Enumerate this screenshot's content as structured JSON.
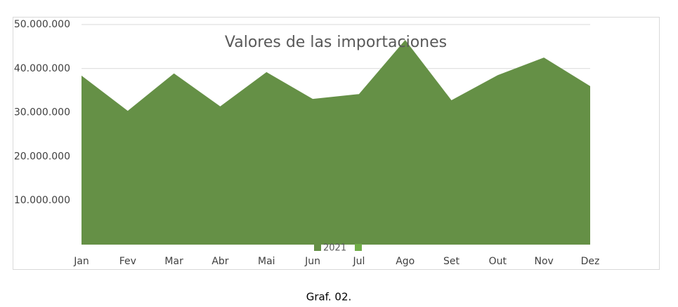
{
  "chart_data": {
    "type": "area",
    "title": "Valores de las importaciones",
    "categories": [
      "Jan",
      "Fev",
      "Mar",
      "Abr",
      "Mai",
      "Jun",
      "Jul",
      "Ago",
      "Set",
      "Out",
      "Nov",
      "Dez"
    ],
    "series": [
      {
        "name": "2021",
        "color": "#659046",
        "values": [
          38400000,
          30400000,
          38900000,
          31400000,
          39200000,
          33100000,
          34200000,
          46500000,
          32800000,
          38500000,
          42500000,
          36000000
        ]
      }
    ],
    "ylim": [
      0,
      50000000
    ],
    "yticks": [
      {
        "value": 10000000,
        "label": "10.000.000"
      },
      {
        "value": 20000000,
        "label": "20.000.000"
      },
      {
        "value": 30000000,
        "label": "30.000.000"
      },
      {
        "value": 40000000,
        "label": "40.000.000"
      },
      {
        "value": 50000000,
        "label": "50.000.000"
      }
    ],
    "grid": true
  },
  "caption": "Graf. 02."
}
